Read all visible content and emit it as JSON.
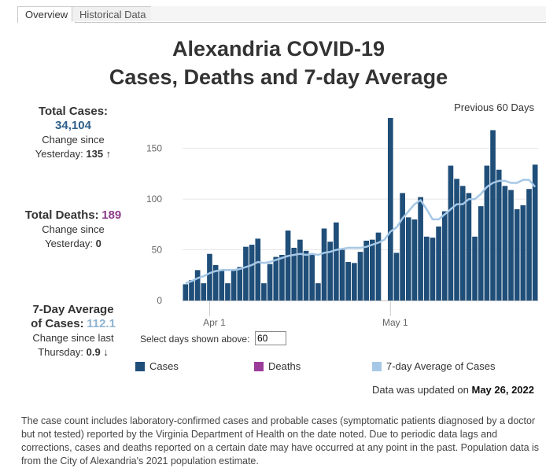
{
  "tabs": [
    {
      "label": "Overview",
      "active": true
    },
    {
      "label": "Historical Data",
      "active": false
    }
  ],
  "title": {
    "line1": "Alexandria COVID-19",
    "line2": "Cases, Deaths and 7-day Average"
  },
  "kpis": {
    "cases": {
      "label": "Total Cases:",
      "value": "34,104",
      "change_label": "Change since",
      "change_prefix": "Yesterday:",
      "change_value": "135 ↑"
    },
    "deaths": {
      "label": "Total Deaths:",
      "value": "189",
      "change_label": "Change since",
      "change_prefix": "Yesterday:",
      "change_value": "0"
    },
    "average": {
      "label_line1": "7-Day Average",
      "label_line2": "of Cases:",
      "value": "112.1",
      "change_label": "Change since last",
      "change_prefix": "Thursday:",
      "change_value": "0.9 ↓"
    }
  },
  "range_label": "Previous 60 Days",
  "select_days": {
    "label": "Select days shown above:",
    "value": "60"
  },
  "legend": [
    {
      "label": "Cases",
      "color": "#1f4e79"
    },
    {
      "label": "Deaths",
      "color": "#9b3c9b"
    },
    {
      "label": "7-day Average of Cases",
      "color": "#a6c8e6"
    }
  ],
  "updated": {
    "prefix": "Data was updated on",
    "date": "May 26, 2022"
  },
  "footnote": "The case count includes laboratory-confirmed cases and probable cases (symptomatic patients diagnosed by a doctor but not tested) reported by the Virginia Department of Health on the date noted. Due to periodic data lags and  corrections, cases and deaths reported on a certain date may have occurred at any point in the past. Population data is from the City of Alexandria's 2021 population estimate.",
  "chart_data": {
    "type": "bar",
    "x_tick_labels": [
      "Apr 1",
      "May 1"
    ],
    "y_ticks": [
      0,
      50,
      100,
      150
    ],
    "ylim": [
      0,
      180
    ],
    "start_date": "2022-03-28",
    "cases": [
      16,
      20,
      30,
      17,
      46,
      35,
      30,
      17,
      30,
      33,
      53,
      55,
      61,
      17,
      36,
      43,
      45,
      69,
      52,
      60,
      49,
      45,
      17,
      71,
      58,
      77,
      50,
      38,
      37,
      48,
      59,
      60,
      67,
      0,
      180,
      47,
      106,
      82,
      80,
      102,
      63,
      62,
      73,
      88,
      133,
      120,
      113,
      106,
      63,
      93,
      133,
      168,
      129,
      113,
      109,
      90,
      94,
      110,
      134
    ],
    "avg": [
      17,
      19,
      22,
      24,
      27,
      29,
      30,
      30,
      30,
      31,
      33,
      35,
      38,
      37,
      38,
      40,
      42,
      44,
      45,
      46,
      45,
      46,
      45,
      47,
      48,
      50,
      51,
      52,
      52,
      52,
      53,
      55,
      57,
      60,
      68,
      72,
      81,
      88,
      95,
      99,
      90,
      80,
      80,
      85,
      90,
      95,
      95,
      100,
      100,
      105,
      112,
      116,
      118,
      118,
      116,
      116,
      119,
      119,
      112
    ]
  }
}
